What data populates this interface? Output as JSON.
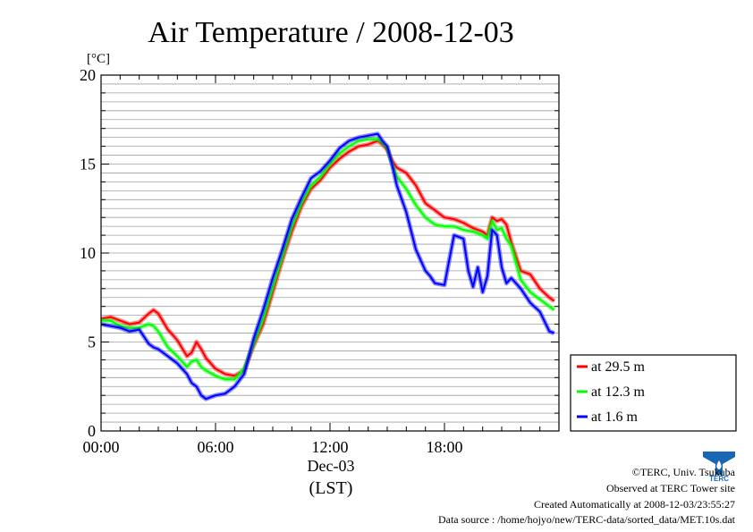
{
  "chart_data": {
    "type": "line",
    "title": "Air Temperature / 2008-12-03",
    "ylabel": "[°C]",
    "xlabel_date": "Dec-03",
    "xlabel_tz": "(LST)",
    "ylim": [
      0,
      20
    ],
    "yticks": [
      0,
      5,
      10,
      15,
      20
    ],
    "xlim": [
      0,
      24
    ],
    "xticks": [
      {
        "value": 0,
        "label": "00:00"
      },
      {
        "value": 6,
        "label": "06:00"
      },
      {
        "value": 12,
        "label": "12:00"
      },
      {
        "value": 18,
        "label": "18:00"
      }
    ],
    "grid": "horizontal, every 0.5",
    "legend_position": "bottom-right outside",
    "series": [
      {
        "name": "at 29.5 m",
        "color": "#ff0000",
        "x": [
          0,
          0.5,
          1,
          1.5,
          2,
          2.5,
          2.75,
          3,
          3.5,
          4,
          4.5,
          4.75,
          5,
          5.25,
          5.5,
          6,
          6.5,
          7,
          7.5,
          8,
          8.5,
          9,
          9.5,
          10,
          10.5,
          11,
          11.5,
          12,
          12.5,
          13,
          13.5,
          14,
          14.5,
          14.75,
          15,
          15.25,
          15.5,
          16,
          16.5,
          17,
          17.5,
          18,
          18.5,
          19,
          19.5,
          20,
          20.25,
          20.5,
          20.75,
          21,
          21.25,
          21.5,
          22,
          22.5,
          23,
          23.5,
          23.75
        ],
        "y": [
          6.3,
          6.4,
          6.2,
          6.0,
          6.1,
          6.6,
          6.8,
          6.6,
          5.7,
          5.1,
          4.2,
          4.4,
          5.0,
          4.6,
          4.1,
          3.5,
          3.2,
          3.1,
          3.4,
          4.8,
          6.0,
          7.8,
          9.6,
          11.2,
          12.6,
          13.6,
          14.1,
          14.8,
          15.3,
          15.7,
          16.0,
          16.1,
          16.3,
          16.1,
          15.8,
          15.2,
          14.8,
          14.5,
          13.8,
          12.8,
          12.4,
          12.0,
          11.9,
          11.7,
          11.4,
          11.2,
          11.0,
          12.0,
          11.8,
          11.9,
          11.6,
          10.6,
          9.0,
          8.8,
          8.0,
          7.5,
          7.3
        ]
      },
      {
        "name": "at 12.3 m",
        "color": "#00ff00",
        "x": [
          0,
          0.5,
          1,
          1.5,
          2,
          2.5,
          2.75,
          3,
          3.5,
          4,
          4.5,
          4.75,
          5,
          5.25,
          5.5,
          6,
          6.5,
          7,
          7.5,
          8,
          8.5,
          9,
          9.5,
          10,
          10.5,
          11,
          11.5,
          12,
          12.5,
          13,
          13.5,
          14,
          14.5,
          14.75,
          15,
          15.25,
          15.5,
          16,
          16.5,
          17,
          17.5,
          18,
          18.5,
          19,
          19.5,
          20,
          20.25,
          20.5,
          20.75,
          21,
          21.25,
          21.5,
          22,
          22.5,
          23,
          23.5,
          23.75
        ],
        "y": [
          6.2,
          6.2,
          5.9,
          5.8,
          5.8,
          6.0,
          5.9,
          5.6,
          4.7,
          4.2,
          3.6,
          3.9,
          4.0,
          3.6,
          3.4,
          3.1,
          2.9,
          2.9,
          3.5,
          4.9,
          6.3,
          8.1,
          9.8,
          11.5,
          12.8,
          13.8,
          14.3,
          15.0,
          15.6,
          16.0,
          16.3,
          16.4,
          16.4,
          16.2,
          15.9,
          15.0,
          14.3,
          13.6,
          12.7,
          12.0,
          11.6,
          11.5,
          11.5,
          11.3,
          11.2,
          11.0,
          10.8,
          11.8,
          11.3,
          11.4,
          10.8,
          10.4,
          8.5,
          7.8,
          7.4,
          7.0,
          6.8
        ]
      },
      {
        "name": "at 1.6 m",
        "color": "#0000ff",
        "x": [
          0,
          0.5,
          1,
          1.5,
          2,
          2.5,
          2.75,
          3,
          3.5,
          4,
          4.5,
          4.75,
          5,
          5.25,
          5.5,
          6,
          6.5,
          7,
          7.5,
          8,
          8.5,
          9,
          9.5,
          10,
          10.5,
          11,
          11.5,
          12,
          12.5,
          13,
          13.5,
          14,
          14.5,
          14.75,
          15,
          15.25,
          15.5,
          16,
          16.5,
          17,
          17.25,
          17.5,
          18,
          18.25,
          18.5,
          19,
          19.25,
          19.5,
          19.75,
          20,
          20.25,
          20.5,
          20.75,
          21,
          21.25,
          21.5,
          22,
          22.5,
          23,
          23.5,
          23.75
        ],
        "y": [
          6.0,
          5.9,
          5.8,
          5.6,
          5.7,
          4.9,
          4.7,
          4.6,
          4.2,
          3.8,
          3.2,
          2.7,
          2.5,
          2.0,
          1.8,
          2.0,
          2.1,
          2.5,
          3.2,
          5.2,
          6.8,
          8.6,
          10.2,
          11.9,
          13.1,
          14.2,
          14.6,
          15.2,
          15.9,
          16.3,
          16.5,
          16.6,
          16.7,
          16.3,
          16.0,
          15.0,
          13.8,
          12.3,
          10.2,
          9.0,
          8.7,
          8.3,
          8.2,
          9.6,
          11.0,
          10.8,
          9.0,
          8.1,
          9.2,
          7.8,
          8.7,
          11.3,
          11.0,
          9.2,
          8.3,
          8.6,
          8.0,
          7.2,
          6.7,
          5.6,
          5.5
        ]
      }
    ]
  },
  "credits": {
    "copyright": "©TERC, Univ. Tsukuba",
    "site": "Observed at TERC Tower site",
    "created": "Created Automatically at 2008-12-03/23:55:27",
    "source": "Data source : /home/hojyo/new/TERC-data/sorted_data/MET.10s.dat",
    "logo_text": "TERC"
  }
}
